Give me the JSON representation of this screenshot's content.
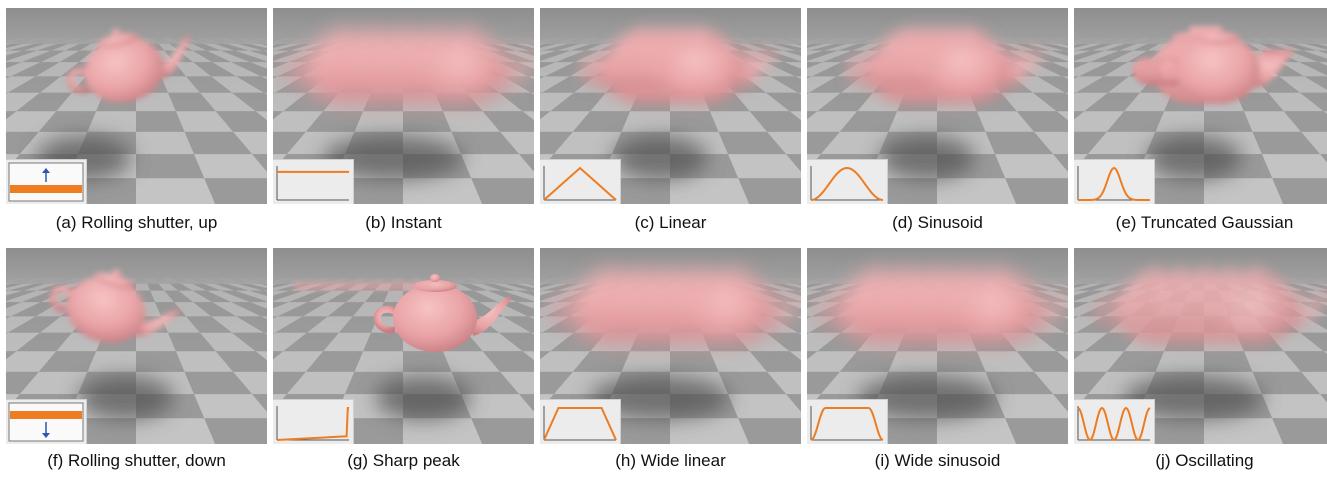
{
  "panels": [
    {
      "caption": "(a) Rolling shutter, up",
      "inset": "rolling-up",
      "teapot": "tilted-left",
      "shadow": "left"
    },
    {
      "caption": "(b) Instant",
      "inset": "instant",
      "teapot": "wide-blur",
      "shadow": "center"
    },
    {
      "caption": "(c) Linear",
      "inset": "linear",
      "teapot": "blur",
      "shadow": "center"
    },
    {
      "caption": "(d) Sinusoid",
      "inset": "sinusoid",
      "teapot": "blur",
      "shadow": "center"
    },
    {
      "caption": "(e) Truncated Gaussian",
      "inset": "gaussian",
      "teapot": "mild-blur",
      "shadow": "center"
    },
    {
      "caption": "(f) Rolling shutter, down",
      "inset": "rolling-down",
      "teapot": "tilted-right",
      "shadow": "center"
    },
    {
      "caption": "(g) Sharp peak",
      "inset": "sharp-peak",
      "teapot": "sharp",
      "shadow": "center"
    },
    {
      "caption": "(h) Wide linear",
      "inset": "wide-linear",
      "teapot": "wide-blur",
      "shadow": "center"
    },
    {
      "caption": "(i) Wide sinusoid",
      "inset": "wide-sinusoid",
      "teapot": "wide-blur",
      "shadow": "center"
    },
    {
      "caption": "(j) Oscillating",
      "inset": "oscillating",
      "teapot": "ghost-blur",
      "shadow": "center"
    }
  ],
  "colors": {
    "teapot": "#e9a3a6",
    "curve": "#ee7d22",
    "arrow": "#3355aa",
    "floor_light": "#c4c4c4",
    "floor_dark": "#9a9a9a"
  }
}
